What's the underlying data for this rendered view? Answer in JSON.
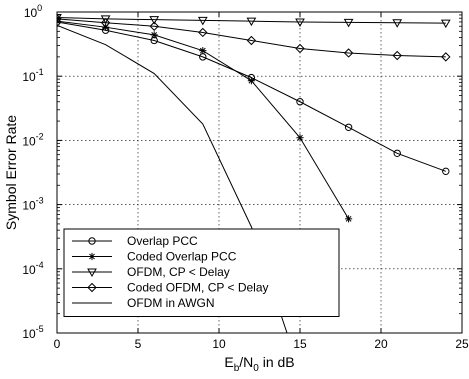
{
  "chart_data": {
    "type": "line",
    "xlabel": {
      "base": "E",
      "sub1": "b",
      "mid": "/N",
      "sub2": "0",
      "tail": " in dB"
    },
    "ylabel": "Symbol Error Rate",
    "xlim": [
      0,
      25
    ],
    "ylim": [
      1e-05,
      1
    ],
    "yscale": "log",
    "grid": true,
    "legend_position": "bottom-left",
    "x_ticks": [
      0,
      5,
      10,
      15,
      20,
      25
    ],
    "x_tick_labels": [
      "0",
      "5",
      "10",
      "15",
      "20",
      "25"
    ],
    "y_ticks": [
      1,
      0.1,
      0.01,
      0.001,
      0.0001,
      1e-05
    ],
    "y_tick_labels": [
      {
        "base": "10",
        "exp": "0"
      },
      {
        "base": "10",
        "exp": "-1"
      },
      {
        "base": "10",
        "exp": "-2"
      },
      {
        "base": "10",
        "exp": "-3"
      },
      {
        "base": "10",
        "exp": "-4"
      },
      {
        "base": "10",
        "exp": "-5"
      }
    ],
    "series": [
      {
        "name": "Overlap PCC",
        "marker": "circle",
        "points": [
          [
            0,
            0.7
          ],
          [
            3,
            0.52
          ],
          [
            6,
            0.36
          ],
          [
            9,
            0.2
          ],
          [
            12,
            0.095
          ],
          [
            15,
            0.04
          ],
          [
            18,
            0.016
          ],
          [
            21,
            0.0063
          ],
          [
            24,
            0.0033
          ]
        ]
      },
      {
        "name": "Coded Overlap PCC",
        "marker": "star",
        "points": [
          [
            0,
            0.72
          ],
          [
            3,
            0.58
          ],
          [
            6,
            0.44
          ],
          [
            9,
            0.25
          ],
          [
            12,
            0.085
          ],
          [
            15,
            0.011
          ],
          [
            18,
            0.0006
          ]
        ]
      },
      {
        "name": "OFDM, CP < Delay",
        "marker": "triangle-down",
        "points": [
          [
            0,
            0.82
          ],
          [
            3,
            0.78
          ],
          [
            6,
            0.76
          ],
          [
            9,
            0.74
          ],
          [
            12,
            0.72
          ],
          [
            15,
            0.7
          ],
          [
            18,
            0.69
          ],
          [
            21,
            0.68
          ],
          [
            24,
            0.67
          ]
        ]
      },
      {
        "name": "Coded OFDM, CP < Delay",
        "marker": "diamond",
        "points": [
          [
            0,
            0.78
          ],
          [
            3,
            0.68
          ],
          [
            6,
            0.6
          ],
          [
            9,
            0.48
          ],
          [
            12,
            0.36
          ],
          [
            15,
            0.27
          ],
          [
            18,
            0.23
          ],
          [
            21,
            0.21
          ],
          [
            24,
            0.2
          ]
        ]
      },
      {
        "name": "OFDM in AWGN",
        "marker": "none",
        "points": [
          [
            0,
            0.62
          ],
          [
            3,
            0.31
          ],
          [
            6,
            0.11
          ],
          [
            9,
            0.018
          ],
          [
            12,
            0.00045
          ],
          [
            14.2,
            1e-05
          ]
        ]
      }
    ]
  }
}
